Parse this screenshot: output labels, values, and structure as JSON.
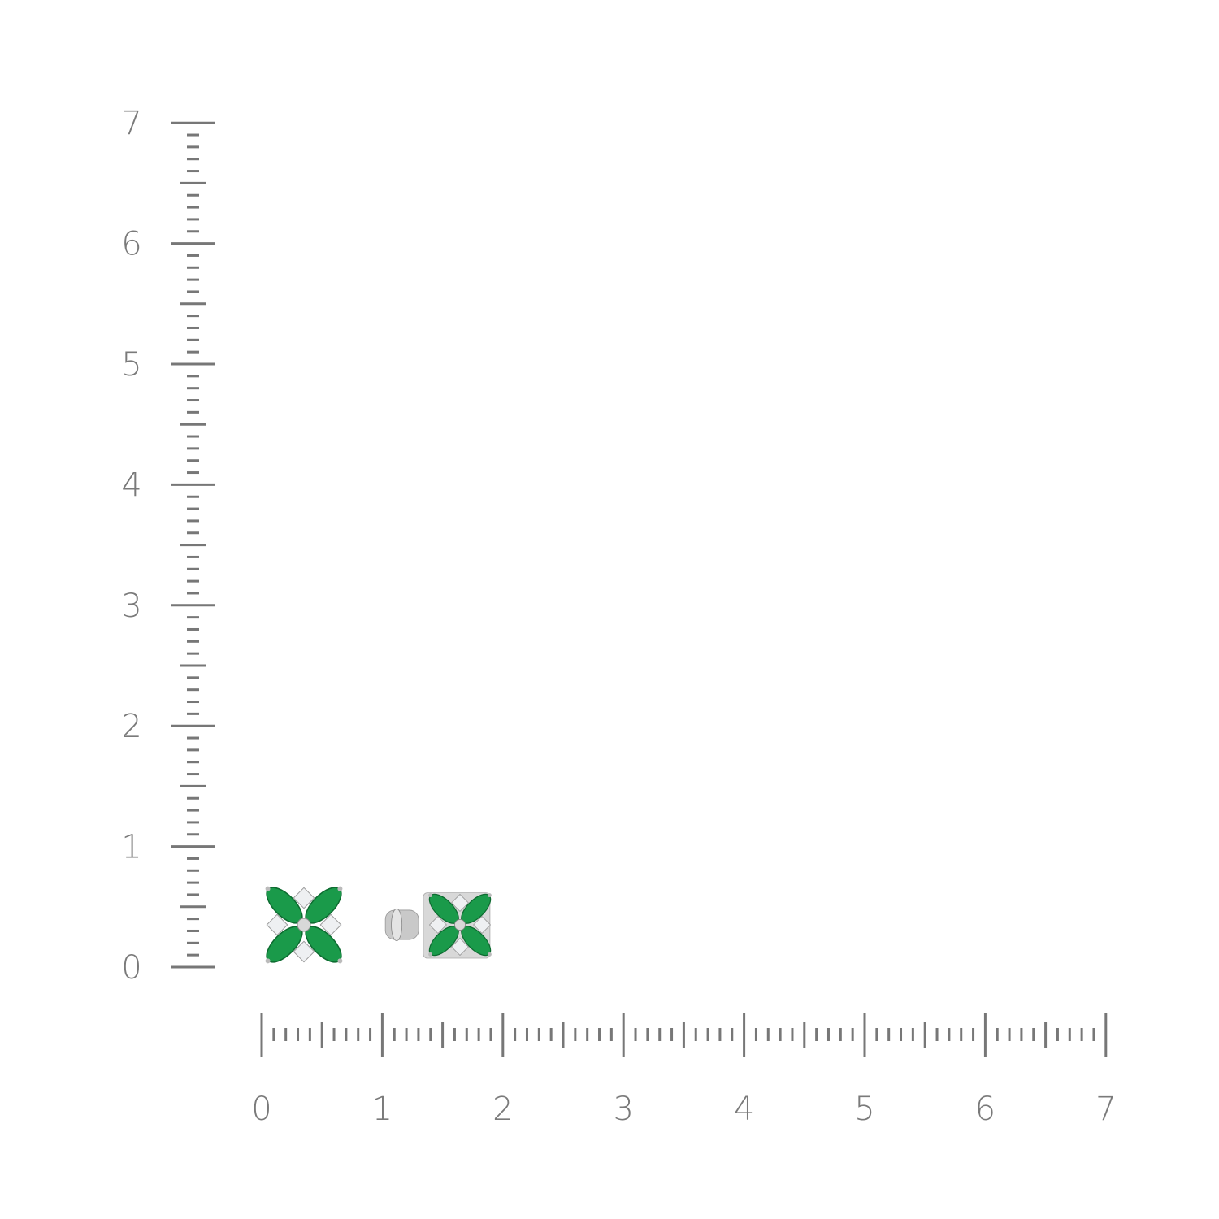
{
  "rulers": {
    "vertical": {
      "labels": [
        "0",
        "1",
        "2",
        "3",
        "4",
        "5",
        "6",
        "7"
      ]
    },
    "horizontal": {
      "labels": [
        "0",
        "1",
        "2",
        "3",
        "4",
        "5",
        "6",
        "7"
      ]
    },
    "subdivisions_per_unit": 10,
    "color": "#777777"
  },
  "product": {
    "items": [
      "earring-front",
      "earring-side"
    ],
    "colors": {
      "emerald": "#1a9a4a",
      "metal": "#d8d8d8",
      "diamond": "#eef0f2"
    }
  }
}
